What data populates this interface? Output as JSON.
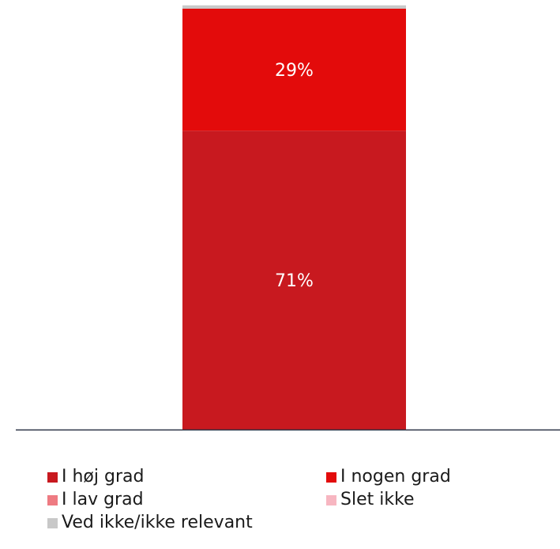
{
  "chart_data": {
    "type": "bar",
    "stacked": true,
    "categories": [
      ""
    ],
    "ylim": [
      0,
      100
    ],
    "grid": false,
    "legend_placement": "bottom",
    "series": [
      {
        "name": "I høj grad",
        "values": [
          71
        ],
        "label": "71%",
        "color": "#c8191f"
      },
      {
        "name": "I nogen grad",
        "values": [
          29
        ],
        "label": "29%",
        "color": "#e30b0b"
      },
      {
        "name": "I lav grad",
        "values": [
          0
        ],
        "label": "",
        "color": "#ee7b82"
      },
      {
        "name": "Slet ikke",
        "values": [
          0
        ],
        "label": "",
        "color": "#f7b6c1"
      },
      {
        "name": "Ved ikke/ikke relevant",
        "values": [
          0.8
        ],
        "label": "",
        "color": "#c8c8c8"
      }
    ],
    "axis_color": "#2b3346"
  }
}
